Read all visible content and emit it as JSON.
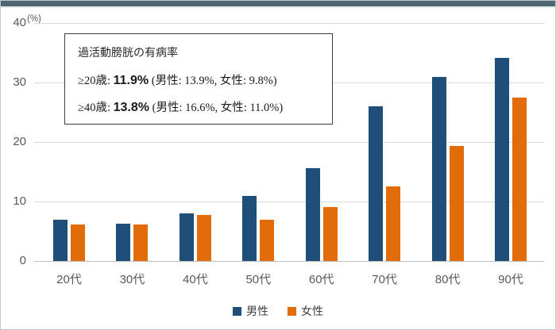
{
  "window": {
    "topbar_color": "#4d666f"
  },
  "chart": {
    "unit_label": "(%)"
  },
  "annotation": {
    "title": "過活動膀胱の有病率",
    "lines": [
      {
        "prefix": "≥20歳: ",
        "value": "11.9%",
        "detail": " (男性: 13.9%, 女性: 9.8%)"
      },
      {
        "prefix": "≥40歳: ",
        "value": "13.8%",
        "detail": " (男性: 16.6%, 女性: 11.0%)"
      }
    ]
  },
  "chart_data": {
    "type": "bar",
    "categories": [
      "20代",
      "30代",
      "40代",
      "50代",
      "60代",
      "70代",
      "80代",
      "90代"
    ],
    "series": [
      {
        "name": "男性",
        "color": "#1f4e79",
        "values": [
          7.0,
          6.3,
          8.0,
          10.9,
          15.6,
          26.0,
          30.9,
          34.2
        ]
      },
      {
        "name": "女性",
        "color": "#e36c0a",
        "values": [
          6.2,
          6.2,
          7.7,
          7.0,
          9.1,
          12.5,
          19.3,
          27.5
        ]
      }
    ],
    "title": "",
    "xlabel": "",
    "ylabel": "(%)",
    "ylim": [
      0,
      40
    ],
    "yticks": [
      0,
      10,
      20,
      30,
      40
    ],
    "grid": true,
    "legend_position": "bottom"
  }
}
